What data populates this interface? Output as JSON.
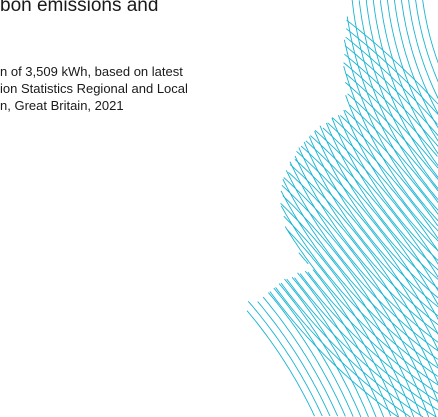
{
  "heading": "bon emissions and",
  "footnote": {
    "lines": [
      "n of 3,509 kWh, based on latest",
      "ion Statistics Regional and Local",
      "n, Great Britain, 2021"
    ]
  },
  "decoration": {
    "accent_color": "#1ab4d2",
    "pattern": "crossing-arc-lines"
  }
}
